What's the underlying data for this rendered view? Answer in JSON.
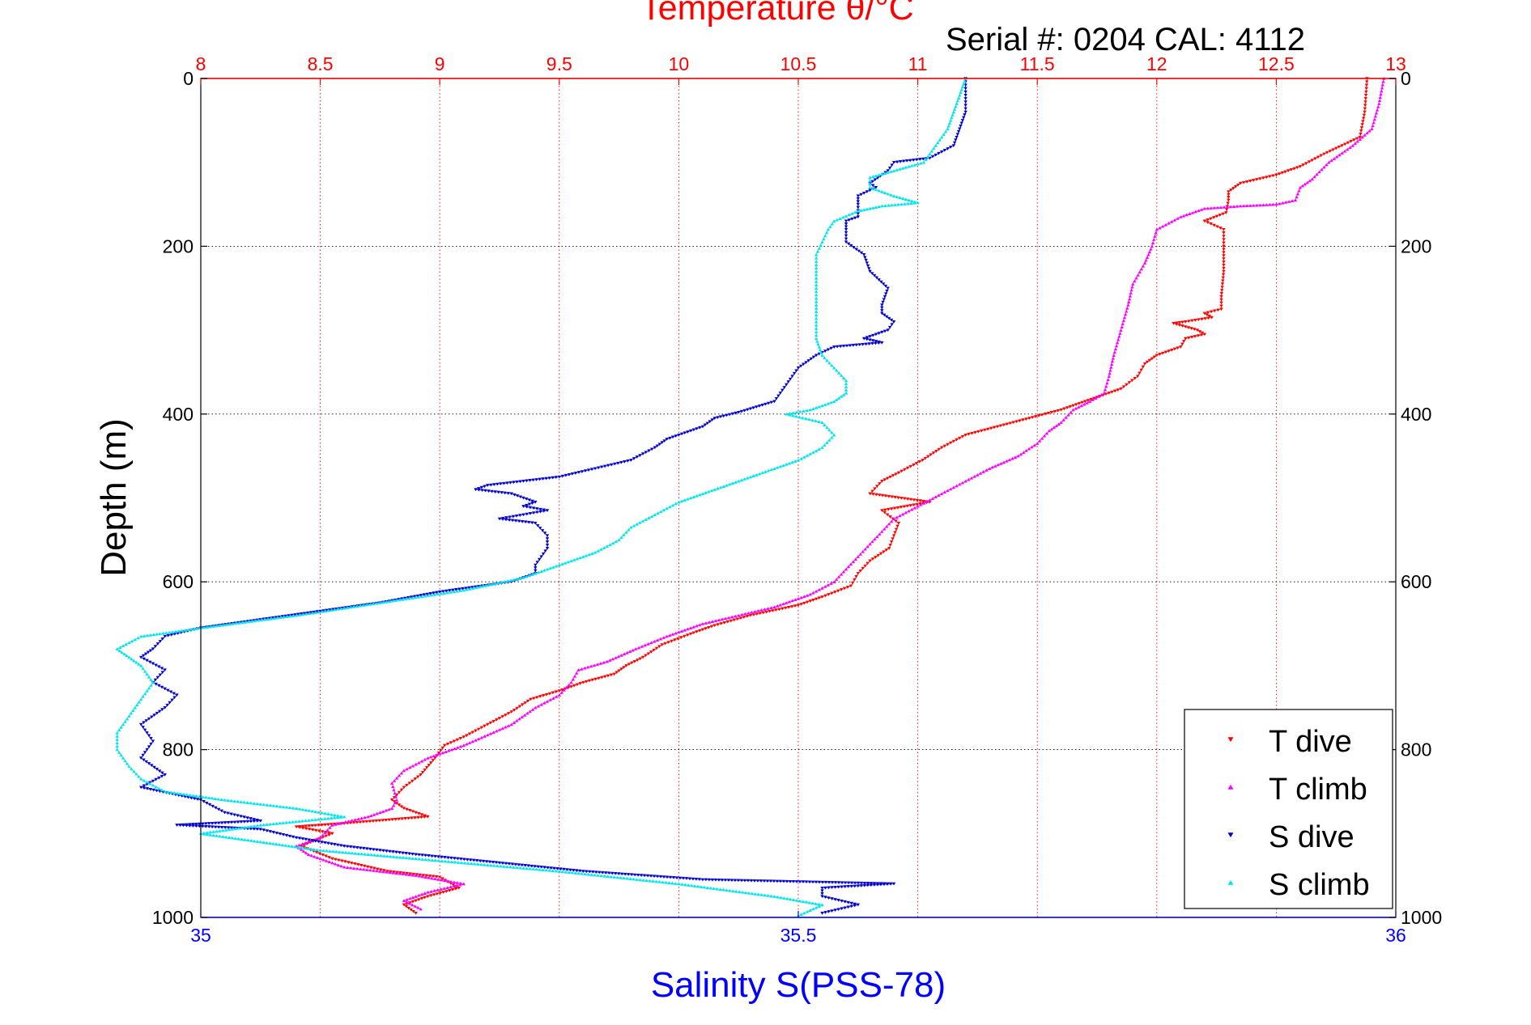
{
  "chart_data": {
    "type": "scatter",
    "title": "Temperature θ/°C",
    "subtitle": "Serial #: 0204  CAL: 4112",
    "ylabel": "Depth (m)",
    "xlabel": "Salinity S(PSS-78)",
    "y_axis": {
      "range": [
        0,
        1000
      ],
      "inverted": true,
      "ticks": [
        0,
        200,
        400,
        600,
        800,
        1000
      ]
    },
    "temperature_axis": {
      "position": "top",
      "range": [
        8,
        13
      ],
      "ticks": [
        "8",
        "8.5",
        "9",
        "9.5",
        "10",
        "10.5",
        "11",
        "11.5",
        "12",
        "12.5",
        "13"
      ]
    },
    "salinity_axis": {
      "position": "bottom",
      "range": [
        35,
        36
      ],
      "ticks": [
        "35",
        "35.5",
        "36"
      ]
    },
    "grid": true,
    "legend": "bottom-right",
    "colors": {
      "temperature_axis": "#ff0000",
      "salinity_axis": "#0000ff",
      "t_dive": "#ff0000",
      "t_climb": "#ff00ff",
      "s_dive": "#0000cc",
      "s_climb": "#00e5ee"
    },
    "series": [
      {
        "name": "T dive",
        "axis": "temperature",
        "marker": "down-triangle",
        "points": [
          [
            12.88,
            0
          ],
          [
            12.87,
            40
          ],
          [
            12.85,
            70
          ],
          [
            12.7,
            90
          ],
          [
            12.6,
            105
          ],
          [
            12.5,
            115
          ],
          [
            12.35,
            125
          ],
          [
            12.3,
            135
          ],
          [
            12.3,
            145
          ],
          [
            12.29,
            160
          ],
          [
            12.2,
            170
          ],
          [
            12.28,
            180
          ],
          [
            12.28,
            200
          ],
          [
            12.28,
            230
          ],
          [
            12.27,
            260
          ],
          [
            12.27,
            275
          ],
          [
            12.2,
            280
          ],
          [
            12.23,
            285
          ],
          [
            12.12,
            290
          ],
          [
            12.07,
            292
          ],
          [
            12.17,
            300
          ],
          [
            12.2,
            305
          ],
          [
            12.12,
            310
          ],
          [
            12.1,
            320
          ],
          [
            12.0,
            330
          ],
          [
            11.95,
            340
          ],
          [
            11.92,
            355
          ],
          [
            11.85,
            370
          ],
          [
            11.7,
            385
          ],
          [
            11.6,
            395
          ],
          [
            11.4,
            410
          ],
          [
            11.2,
            425
          ],
          [
            11.1,
            440
          ],
          [
            11.02,
            455
          ],
          [
            10.92,
            470
          ],
          [
            10.85,
            480
          ],
          [
            10.8,
            495
          ],
          [
            11.05,
            505
          ],
          [
            10.85,
            515
          ],
          [
            10.92,
            530
          ],
          [
            10.9,
            545
          ],
          [
            10.88,
            560
          ],
          [
            10.8,
            575
          ],
          [
            10.75,
            590
          ],
          [
            10.72,
            605
          ],
          [
            10.6,
            618
          ],
          [
            10.5,
            628
          ],
          [
            10.3,
            640
          ],
          [
            10.15,
            652
          ],
          [
            10.05,
            662
          ],
          [
            9.93,
            675
          ],
          [
            9.85,
            690
          ],
          [
            9.78,
            700
          ],
          [
            9.73,
            710
          ],
          [
            9.6,
            720
          ],
          [
            9.5,
            730
          ],
          [
            9.38,
            740
          ],
          [
            9.3,
            755
          ],
          [
            9.2,
            770
          ],
          [
            9.1,
            785
          ],
          [
            9.02,
            795
          ],
          [
            8.98,
            810
          ],
          [
            8.92,
            830
          ],
          [
            8.85,
            845
          ],
          [
            8.8,
            860
          ],
          [
            8.85,
            870
          ],
          [
            8.95,
            880
          ],
          [
            8.6,
            888
          ],
          [
            8.4,
            892
          ],
          [
            8.55,
            900
          ],
          [
            8.42,
            915
          ],
          [
            8.55,
            930
          ],
          [
            8.78,
            945
          ],
          [
            9.0,
            952
          ],
          [
            9.08,
            965
          ],
          [
            8.95,
            975
          ],
          [
            8.85,
            985
          ],
          [
            8.9,
            995
          ]
        ]
      },
      {
        "name": "T climb",
        "axis": "temperature",
        "marker": "up-triangle",
        "points": [
          [
            12.95,
            0
          ],
          [
            12.93,
            30
          ],
          [
            12.9,
            60
          ],
          [
            12.82,
            80
          ],
          [
            12.72,
            100
          ],
          [
            12.65,
            120
          ],
          [
            12.6,
            130
          ],
          [
            12.58,
            145
          ],
          [
            12.5,
            150
          ],
          [
            12.35,
            152
          ],
          [
            12.2,
            155
          ],
          [
            12.1,
            165
          ],
          [
            12.0,
            180
          ],
          [
            11.98,
            200
          ],
          [
            11.95,
            220
          ],
          [
            11.9,
            245
          ],
          [
            11.88,
            270
          ],
          [
            11.85,
            300
          ],
          [
            11.82,
            330
          ],
          [
            11.8,
            355
          ],
          [
            11.78,
            375
          ],
          [
            11.72,
            385
          ],
          [
            11.65,
            395
          ],
          [
            11.6,
            410
          ],
          [
            11.55,
            420
          ],
          [
            11.5,
            435
          ],
          [
            11.42,
            450
          ],
          [
            11.3,
            465
          ],
          [
            11.2,
            480
          ],
          [
            11.1,
            495
          ],
          [
            11.0,
            510
          ],
          [
            10.9,
            525
          ],
          [
            10.85,
            540
          ],
          [
            10.8,
            555
          ],
          [
            10.75,
            570
          ],
          [
            10.7,
            585
          ],
          [
            10.65,
            600
          ],
          [
            10.55,
            615
          ],
          [
            10.4,
            630
          ],
          [
            10.25,
            640
          ],
          [
            10.1,
            650
          ],
          [
            9.95,
            665
          ],
          [
            9.82,
            680
          ],
          [
            9.7,
            695
          ],
          [
            9.58,
            705
          ],
          [
            9.55,
            720
          ],
          [
            9.5,
            735
          ],
          [
            9.4,
            750
          ],
          [
            9.3,
            770
          ],
          [
            9.1,
            795
          ],
          [
            8.95,
            810
          ],
          [
            8.85,
            825
          ],
          [
            8.8,
            840
          ],
          [
            8.82,
            860
          ],
          [
            8.8,
            870
          ],
          [
            8.7,
            880
          ],
          [
            8.55,
            890
          ],
          [
            8.5,
            905
          ],
          [
            8.4,
            915
          ],
          [
            8.45,
            925
          ],
          [
            8.6,
            940
          ],
          [
            8.9,
            950
          ],
          [
            9.1,
            960
          ],
          [
            8.95,
            970
          ],
          [
            8.85,
            980
          ],
          [
            8.92,
            990
          ]
        ]
      },
      {
        "name": "S dive",
        "axis": "salinity",
        "marker": "down-triangle",
        "points": [
          [
            35.64,
            0
          ],
          [
            35.64,
            20
          ],
          [
            35.64,
            40
          ],
          [
            35.635,
            60
          ],
          [
            35.63,
            80
          ],
          [
            35.61,
            95
          ],
          [
            35.58,
            100
          ],
          [
            35.575,
            110
          ],
          [
            35.56,
            125
          ],
          [
            35.565,
            130
          ],
          [
            35.55,
            140
          ],
          [
            35.55,
            150
          ],
          [
            35.55,
            165
          ],
          [
            35.54,
            170
          ],
          [
            35.54,
            180
          ],
          [
            35.54,
            195
          ],
          [
            35.555,
            210
          ],
          [
            35.56,
            230
          ],
          [
            35.575,
            250
          ],
          [
            35.57,
            270
          ],
          [
            35.57,
            280
          ],
          [
            35.58,
            290
          ],
          [
            35.575,
            300
          ],
          [
            35.555,
            310
          ],
          [
            35.57,
            315
          ],
          [
            35.53,
            320
          ],
          [
            35.515,
            330
          ],
          [
            35.5,
            345
          ],
          [
            35.49,
            365
          ],
          [
            35.48,
            385
          ],
          [
            35.45,
            398
          ],
          [
            35.43,
            405
          ],
          [
            35.42,
            415
          ],
          [
            35.39,
            430
          ],
          [
            35.38,
            440
          ],
          [
            35.36,
            455
          ],
          [
            35.33,
            465
          ],
          [
            35.3,
            475
          ],
          [
            35.27,
            480
          ],
          [
            35.24,
            485
          ],
          [
            35.23,
            490
          ],
          [
            35.26,
            495
          ],
          [
            35.28,
            505
          ],
          [
            35.27,
            510
          ],
          [
            35.29,
            515
          ],
          [
            35.27,
            520
          ],
          [
            35.25,
            525
          ],
          [
            35.28,
            530
          ],
          [
            35.29,
            545
          ],
          [
            35.29,
            560
          ],
          [
            35.28,
            580
          ],
          [
            35.28,
            590
          ],
          [
            35.26,
            600
          ],
          [
            35.2,
            612
          ],
          [
            35.15,
            625
          ],
          [
            35.1,
            635
          ],
          [
            35.05,
            645
          ],
          [
            35.0,
            655
          ],
          [
            34.97,
            665
          ],
          [
            34.96,
            680
          ],
          [
            34.95,
            690
          ],
          [
            34.97,
            705
          ],
          [
            34.96,
            720
          ],
          [
            34.98,
            735
          ],
          [
            34.97,
            750
          ],
          [
            34.95,
            770
          ],
          [
            34.96,
            790
          ],
          [
            34.95,
            810
          ],
          [
            34.97,
            830
          ],
          [
            34.95,
            845
          ],
          [
            35.0,
            860
          ],
          [
            35.02,
            875
          ],
          [
            35.05,
            885
          ],
          [
            34.98,
            890
          ],
          [
            35.05,
            895
          ],
          [
            35.08,
            905
          ],
          [
            35.12,
            915
          ],
          [
            35.18,
            925
          ],
          [
            35.25,
            935
          ],
          [
            35.32,
            945
          ],
          [
            35.42,
            955
          ],
          [
            35.58,
            960
          ],
          [
            35.52,
            965
          ],
          [
            35.52,
            975
          ],
          [
            35.55,
            985
          ],
          [
            35.52,
            995
          ]
        ]
      },
      {
        "name": "S climb",
        "axis": "salinity",
        "marker": "up-triangle",
        "points": [
          [
            35.64,
            0
          ],
          [
            35.635,
            20
          ],
          [
            35.63,
            40
          ],
          [
            35.625,
            60
          ],
          [
            35.615,
            80
          ],
          [
            35.605,
            100
          ],
          [
            35.58,
            110
          ],
          [
            35.56,
            118
          ],
          [
            35.56,
            130
          ],
          [
            35.58,
            140
          ],
          [
            35.6,
            148
          ],
          [
            35.57,
            152
          ],
          [
            35.55,
            158
          ],
          [
            35.53,
            170
          ],
          [
            35.525,
            180
          ],
          [
            35.52,
            195
          ],
          [
            35.515,
            210
          ],
          [
            35.515,
            230
          ],
          [
            35.515,
            250
          ],
          [
            35.515,
            270
          ],
          [
            35.515,
            290
          ],
          [
            35.515,
            310
          ],
          [
            35.52,
            330
          ],
          [
            35.53,
            345
          ],
          [
            35.54,
            360
          ],
          [
            35.54,
            375
          ],
          [
            35.53,
            385
          ],
          [
            35.51,
            395
          ],
          [
            35.49,
            400
          ],
          [
            35.52,
            410
          ],
          [
            35.53,
            425
          ],
          [
            35.52,
            440
          ],
          [
            35.5,
            455
          ],
          [
            35.47,
            470
          ],
          [
            35.44,
            485
          ],
          [
            35.42,
            495
          ],
          [
            35.4,
            505
          ],
          [
            35.38,
            520
          ],
          [
            35.36,
            535
          ],
          [
            35.35,
            550
          ],
          [
            35.33,
            565
          ],
          [
            35.3,
            580
          ],
          [
            35.27,
            595
          ],
          [
            35.22,
            610
          ],
          [
            35.15,
            625
          ],
          [
            35.08,
            640
          ],
          [
            35.0,
            655
          ],
          [
            34.95,
            665
          ],
          [
            34.93,
            680
          ],
          [
            34.94,
            690
          ],
          [
            34.95,
            700
          ],
          [
            34.96,
            720
          ],
          [
            34.95,
            740
          ],
          [
            34.94,
            760
          ],
          [
            34.93,
            780
          ],
          [
            34.93,
            800
          ],
          [
            34.94,
            820
          ],
          [
            34.95,
            835
          ],
          [
            34.97,
            850
          ],
          [
            35.02,
            860
          ],
          [
            35.08,
            870
          ],
          [
            35.12,
            880
          ],
          [
            35.05,
            890
          ],
          [
            35.0,
            900
          ],
          [
            35.05,
            910
          ],
          [
            35.1,
            920
          ],
          [
            35.18,
            930
          ],
          [
            35.3,
            945
          ],
          [
            35.4,
            960
          ],
          [
            35.48,
            975
          ],
          [
            35.52,
            985
          ],
          [
            35.5,
            998
          ]
        ]
      }
    ]
  }
}
